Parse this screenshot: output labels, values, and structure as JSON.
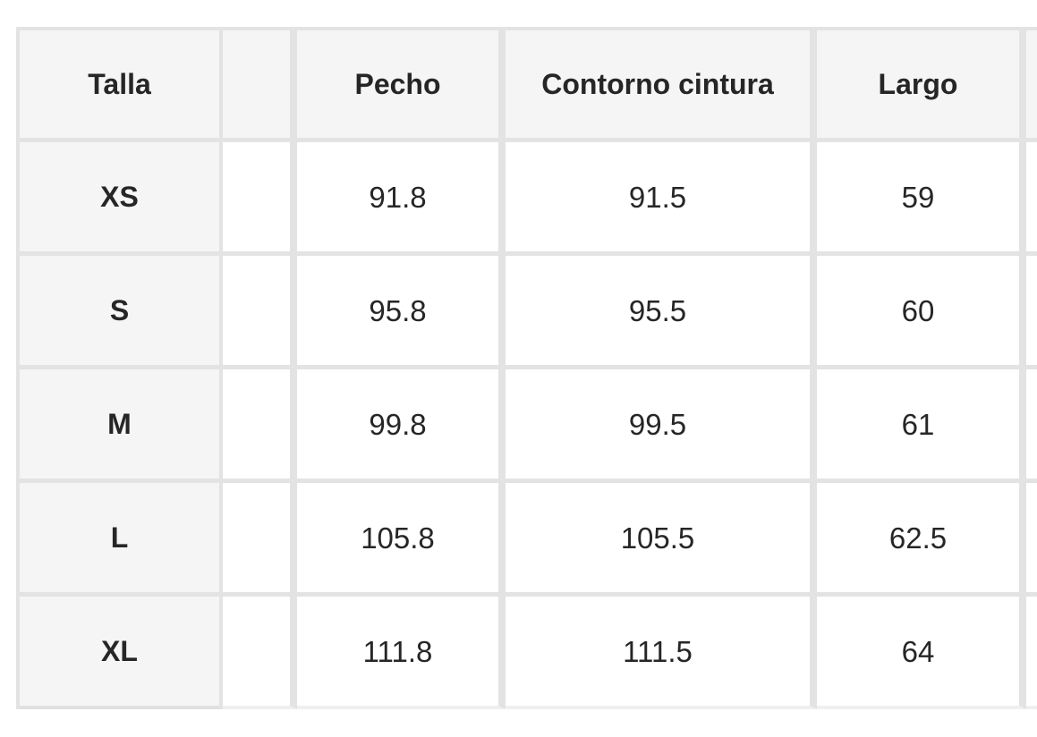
{
  "size_chart": {
    "header": {
      "talla": "Talla",
      "spacer": "",
      "pecho": "Pecho",
      "contorno_cintura": "Contorno cintura",
      "largo": "Largo",
      "next_partial": ""
    },
    "rows": [
      {
        "size": "XS",
        "spacer": "",
        "pecho": "91.8",
        "contorno_cintura": "91.5",
        "largo": "59",
        "next_partial": ""
      },
      {
        "size": "S",
        "spacer": "",
        "pecho": "95.8",
        "contorno_cintura": "95.5",
        "largo": "60",
        "next_partial": ""
      },
      {
        "size": "M",
        "spacer": "",
        "pecho": "99.8",
        "contorno_cintura": "99.5",
        "largo": "61",
        "next_partial": ""
      },
      {
        "size": "L",
        "spacer": "",
        "pecho": "105.8",
        "contorno_cintura": "105.5",
        "largo": "62.5",
        "next_partial": ""
      },
      {
        "size": "XL",
        "spacer": "",
        "pecho": "111.8",
        "contorno_cintura": "111.5",
        "largo": "64",
        "next_partial": ""
      }
    ]
  },
  "colors": {
    "border": "#e3e3e3",
    "header_background": "#f5f5f5",
    "cell_background": "#ffffff",
    "text": "#262626"
  }
}
